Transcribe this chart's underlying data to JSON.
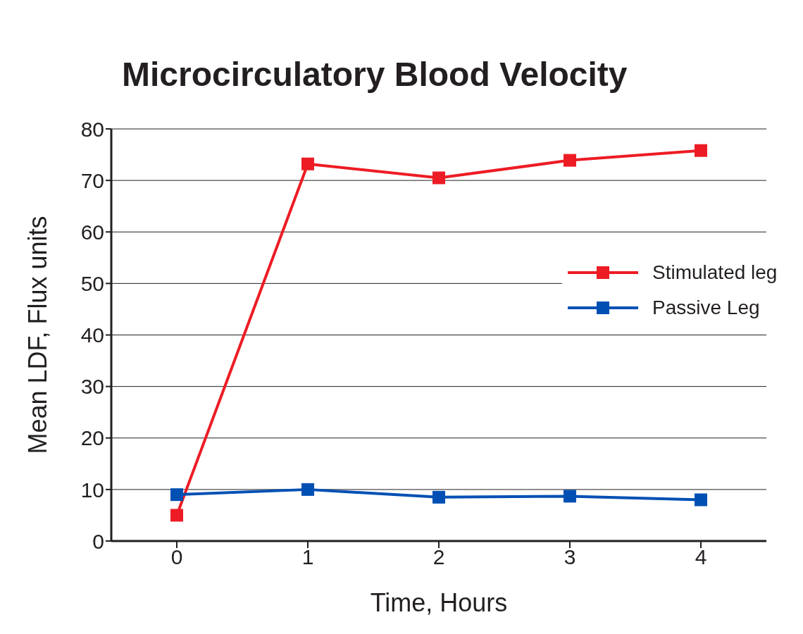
{
  "chart_data": {
    "type": "line",
    "title": "Microcirculatory Blood Velocity",
    "xlabel": "Time, Hours",
    "ylabel": "Mean LDF, Flux units",
    "x": [
      0,
      1,
      2,
      3,
      4
    ],
    "series": [
      {
        "name": "Stimulated leg",
        "color": "#ed1c24",
        "values": [
          5,
          73.2,
          70.5,
          73.9,
          75.8
        ]
      },
      {
        "name": "Passive Leg",
        "color": "#0050b4",
        "values": [
          9,
          10,
          8.5,
          8.7,
          8
        ]
      }
    ],
    "xlim": [
      -0.5,
      4.5
    ],
    "xticks": [
      0,
      1,
      2,
      3,
      4
    ],
    "ylim": [
      0,
      80
    ],
    "yticks": [
      0,
      10,
      20,
      30,
      40,
      50,
      60,
      70,
      80
    ],
    "grid": "y",
    "legend": "right",
    "marker": "square",
    "line_style": "solid"
  }
}
